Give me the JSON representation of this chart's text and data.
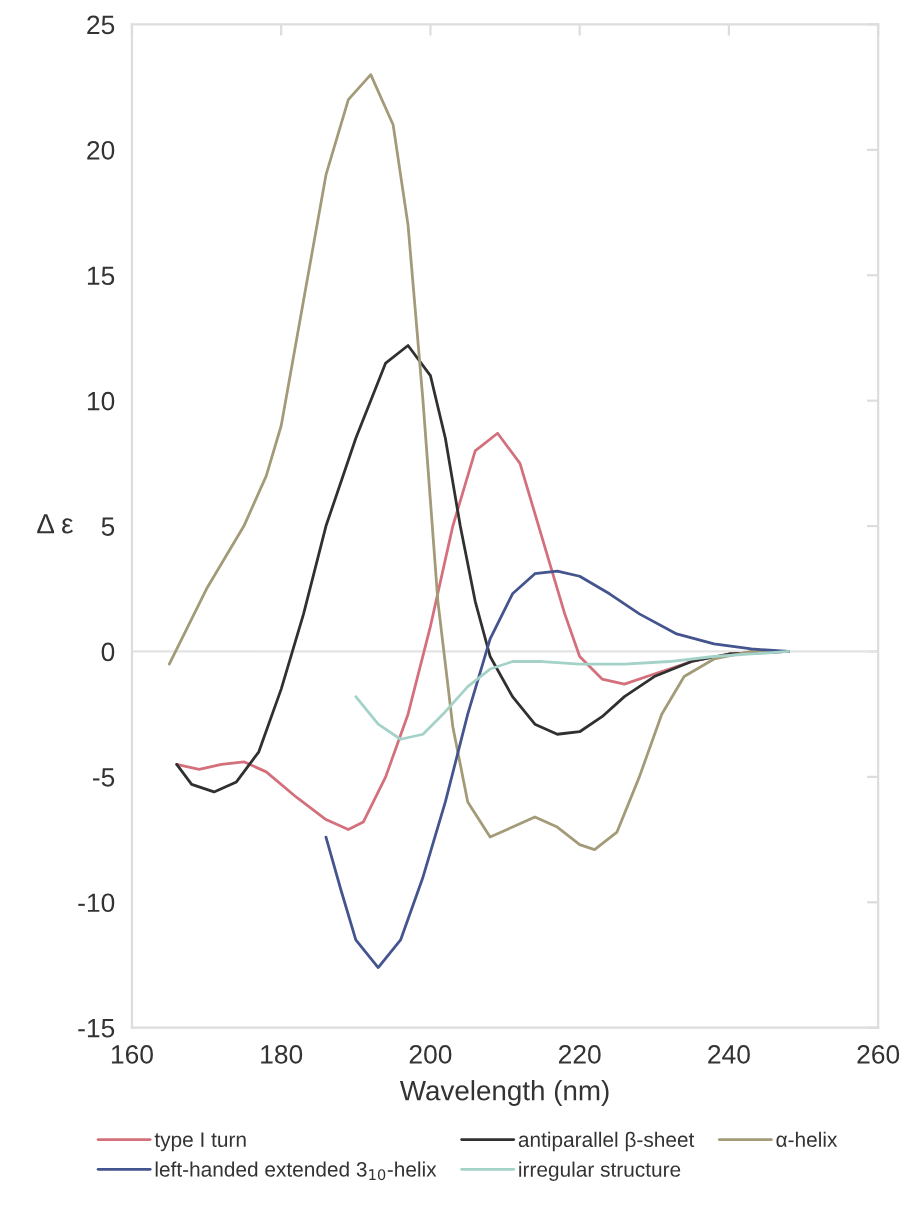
{
  "chart_data": {
    "type": "line",
    "xlabel": "Wavelength (nm)",
    "ylabel": "Δ ε",
    "xlim": [
      160,
      260
    ],
    "xticks": [
      160,
      180,
      200,
      220,
      240,
      260
    ],
    "ylim": [
      -15,
      25
    ],
    "yticks": [
      -15,
      -10,
      -5,
      0,
      5,
      10,
      15,
      20,
      25
    ],
    "grid": false,
    "legend": "bottom",
    "marker": "none",
    "line_style": "solid",
    "ref_lines": [
      {
        "axis": "y",
        "value": 0,
        "color": "#e4e4e4",
        "line_style": "solid"
      }
    ],
    "series": [
      {
        "name": "type I turn",
        "color": "#d4707c",
        "x": [
          166,
          169,
          172,
          175,
          178,
          182,
          186,
          189,
          191,
          194,
          197,
          200,
          203,
          206,
          209,
          212,
          215,
          218,
          220,
          223,
          226,
          230,
          235,
          240,
          248
        ],
        "values": [
          -4.5,
          -4.7,
          -4.5,
          -4.4,
          -4.8,
          -5.8,
          -6.7,
          -7.1,
          -6.8,
          -5,
          -2.5,
          1,
          5,
          8,
          8.7,
          7.5,
          4.5,
          1.5,
          -0.2,
          -1.1,
          -1.3,
          -0.9,
          -0.4,
          -0.1,
          0
        ]
      },
      {
        "name": "antiparallel β-sheet",
        "color": "#303030",
        "x": [
          166,
          168,
          171,
          174,
          177,
          180,
          183,
          186,
          190,
          194,
          197,
          200,
          202,
          204,
          206,
          208,
          211,
          214,
          217,
          220,
          223,
          226,
          230,
          235,
          240,
          248
        ],
        "values": [
          -4.5,
          -5.3,
          -5.6,
          -5.2,
          -4,
          -1.5,
          1.5,
          5,
          8.5,
          11.5,
          12.2,
          11,
          8.5,
          5,
          2,
          -0.2,
          -1.8,
          -2.9,
          -3.3,
          -3.2,
          -2.6,
          -1.8,
          -1,
          -0.4,
          -0.1,
          0
        ]
      },
      {
        "name": "α-helix",
        "color": "#a39a78",
        "x": [
          165,
          170,
          175,
          178,
          180,
          183,
          186,
          189,
          192,
          195,
          197,
          199,
          201,
          203,
          205,
          208,
          211,
          214,
          217,
          220,
          222,
          225,
          228,
          231,
          234,
          238,
          243,
          248
        ],
        "values": [
          -0.5,
          2.5,
          5,
          7,
          9,
          14,
          19,
          22,
          23,
          21,
          17,
          10,
          2,
          -3,
          -6,
          -7.4,
          -7,
          -6.6,
          -7,
          -7.7,
          -7.9,
          -7.2,
          -5,
          -2.5,
          -1,
          -0.3,
          0,
          0
        ]
      },
      {
        "name": "left-handed extended 3$_{10}$-helix",
        "color": "#44548e",
        "x": [
          186,
          188,
          190,
          193,
          196,
          199,
          202,
          205,
          208,
          211,
          214,
          217,
          220,
          224,
          228,
          233,
          238,
          243,
          248
        ],
        "values": [
          -7.4,
          -9.5,
          -11.5,
          -12.6,
          -11.5,
          -9,
          -6,
          -2.5,
          0.5,
          2.3,
          3.1,
          3.2,
          3,
          2.3,
          1.5,
          0.7,
          0.3,
          0.1,
          0
        ]
      },
      {
        "name": "irregular structure",
        "color": "#a4d2c8",
        "x": [
          190,
          193,
          196,
          199,
          202,
          205,
          208,
          211,
          215,
          220,
          226,
          232,
          238,
          243,
          248
        ],
        "values": [
          -1.8,
          -2.9,
          -3.5,
          -3.3,
          -2.4,
          -1.4,
          -0.7,
          -0.4,
          -0.4,
          -0.5,
          -0.5,
          -0.4,
          -0.2,
          -0.1,
          0
        ]
      }
    ]
  }
}
